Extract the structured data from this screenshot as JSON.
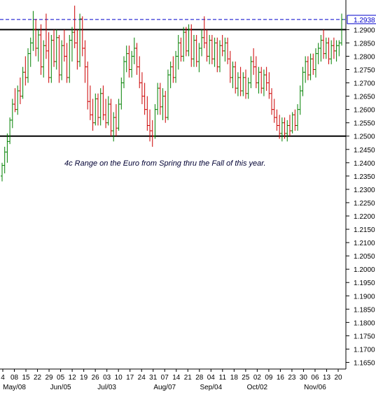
{
  "chart_data": {
    "type": "ohlc",
    "instrument": "EUR/USD",
    "y_axis": {
      "min": 1.1625,
      "max": 1.2985,
      "tick_start": 1.165,
      "tick_end": 1.29,
      "tick_step": 0.005,
      "decimals": 4,
      "position": "right"
    },
    "current_price": {
      "value": 1.2938,
      "label": "1.2938",
      "color": "#0000cc"
    },
    "horizontal_lines": [
      {
        "value": 1.29,
        "color": "#000000"
      },
      {
        "value": 1.25,
        "color": "#000000"
      }
    ],
    "annotation": "4c Range on the Euro from Spring thru the Fall of this year.",
    "x_day_labels": [
      "4",
      "08",
      "15",
      "22",
      "29",
      "05",
      "12",
      "19",
      "26",
      "03",
      "10",
      "17",
      "24",
      "31",
      "07",
      "14",
      "21",
      "28",
      "04",
      "11",
      "18",
      "25",
      "02",
      "09",
      "16",
      "23",
      "30",
      "06",
      "13",
      "20"
    ],
    "x_month_labels": [
      "May/08",
      "Jun/05",
      "Jul/03",
      "Aug/07",
      "Sep/04",
      "Oct/02",
      "Nov/06"
    ],
    "up_color": "#008000",
    "down_color": "#cc0000",
    "bars": [
      {
        "o": 1.235,
        "h": 1.24,
        "l": 1.233,
        "c": 1.239
      },
      {
        "o": 1.239,
        "h": 1.246,
        "l": 1.236,
        "c": 1.244
      },
      {
        "o": 1.244,
        "h": 1.251,
        "l": 1.24,
        "c": 1.248
      },
      {
        "o": 1.248,
        "h": 1.257,
        "l": 1.247,
        "c": 1.256
      },
      {
        "o": 1.256,
        "h": 1.264,
        "l": 1.253,
        "c": 1.262
      },
      {
        "o": 1.262,
        "h": 1.268,
        "l": 1.259,
        "c": 1.26
      },
      {
        "o": 1.26,
        "h": 1.269,
        "l": 1.258,
        "c": 1.267
      },
      {
        "o": 1.267,
        "h": 1.272,
        "l": 1.262,
        "c": 1.265
      },
      {
        "o": 1.265,
        "h": 1.276,
        "l": 1.264,
        "c": 1.274
      },
      {
        "o": 1.274,
        "h": 1.28,
        "l": 1.269,
        "c": 1.272
      },
      {
        "o": 1.272,
        "h": 1.283,
        "l": 1.27,
        "c": 1.281
      },
      {
        "o": 1.281,
        "h": 1.287,
        "l": 1.276,
        "c": 1.285
      },
      {
        "o": 1.285,
        "h": 1.297,
        "l": 1.282,
        "c": 1.29
      },
      {
        "o": 1.29,
        "h": 1.294,
        "l": 1.28,
        "c": 1.283
      },
      {
        "o": 1.283,
        "h": 1.29,
        "l": 1.278,
        "c": 1.288
      },
      {
        "o": 1.288,
        "h": 1.292,
        "l": 1.273,
        "c": 1.276
      },
      {
        "o": 1.276,
        "h": 1.286,
        "l": 1.272,
        "c": 1.284
      },
      {
        "o": 1.284,
        "h": 1.296,
        "l": 1.279,
        "c": 1.282
      },
      {
        "o": 1.282,
        "h": 1.289,
        "l": 1.27,
        "c": 1.272
      },
      {
        "o": 1.272,
        "h": 1.288,
        "l": 1.27,
        "c": 1.286
      },
      {
        "o": 1.286,
        "h": 1.29,
        "l": 1.276,
        "c": 1.278
      },
      {
        "o": 1.278,
        "h": 1.29,
        "l": 1.275,
        "c": 1.287
      },
      {
        "o": 1.287,
        "h": 1.288,
        "l": 1.27,
        "c": 1.273
      },
      {
        "o": 1.273,
        "h": 1.286,
        "l": 1.271,
        "c": 1.284
      },
      {
        "o": 1.284,
        "h": 1.29,
        "l": 1.278,
        "c": 1.28
      },
      {
        "o": 1.28,
        "h": 1.285,
        "l": 1.27,
        "c": 1.272
      },
      {
        "o": 1.272,
        "h": 1.288,
        "l": 1.27,
        "c": 1.286
      },
      {
        "o": 1.286,
        "h": 1.291,
        "l": 1.278,
        "c": 1.289
      },
      {
        "o": 1.289,
        "h": 1.299,
        "l": 1.283,
        "c": 1.285
      },
      {
        "o": 1.285,
        "h": 1.29,
        "l": 1.275,
        "c": 1.278
      },
      {
        "o": 1.278,
        "h": 1.296,
        "l": 1.276,
        "c": 1.294
      },
      {
        "o": 1.294,
        "h": 1.295,
        "l": 1.28,
        "c": 1.283
      },
      {
        "o": 1.283,
        "h": 1.286,
        "l": 1.27,
        "c": 1.276
      },
      {
        "o": 1.276,
        "h": 1.278,
        "l": 1.26,
        "c": 1.263
      },
      {
        "o": 1.263,
        "h": 1.269,
        "l": 1.256,
        "c": 1.258
      },
      {
        "o": 1.258,
        "h": 1.264,
        "l": 1.252,
        "c": 1.255
      },
      {
        "o": 1.255,
        "h": 1.266,
        "l": 1.254,
        "c": 1.264
      },
      {
        "o": 1.264,
        "h": 1.266,
        "l": 1.254,
        "c": 1.257
      },
      {
        "o": 1.257,
        "h": 1.268,
        "l": 1.254,
        "c": 1.266
      },
      {
        "o": 1.266,
        "h": 1.269,
        "l": 1.256,
        "c": 1.258
      },
      {
        "o": 1.258,
        "h": 1.264,
        "l": 1.253,
        "c": 1.255
      },
      {
        "o": 1.255,
        "h": 1.265,
        "l": 1.254,
        "c": 1.262
      },
      {
        "o": 1.262,
        "h": 1.264,
        "l": 1.25,
        "c": 1.252
      },
      {
        "o": 1.252,
        "h": 1.259,
        "l": 1.248,
        "c": 1.257
      },
      {
        "o": 1.257,
        "h": 1.262,
        "l": 1.25,
        "c": 1.253
      },
      {
        "o": 1.253,
        "h": 1.264,
        "l": 1.252,
        "c": 1.262
      },
      {
        "o": 1.262,
        "h": 1.272,
        "l": 1.26,
        "c": 1.27
      },
      {
        "o": 1.27,
        "h": 1.28,
        "l": 1.268,
        "c": 1.278
      },
      {
        "o": 1.278,
        "h": 1.284,
        "l": 1.274,
        "c": 1.281
      },
      {
        "o": 1.281,
        "h": 1.284,
        "l": 1.272,
        "c": 1.275
      },
      {
        "o": 1.275,
        "h": 1.282,
        "l": 1.272,
        "c": 1.28
      },
      {
        "o": 1.28,
        "h": 1.287,
        "l": 1.277,
        "c": 1.283
      },
      {
        "o": 1.283,
        "h": 1.285,
        "l": 1.273,
        "c": 1.276
      },
      {
        "o": 1.276,
        "h": 1.28,
        "l": 1.268,
        "c": 1.27
      },
      {
        "o": 1.27,
        "h": 1.274,
        "l": 1.262,
        "c": 1.265
      },
      {
        "o": 1.265,
        "h": 1.27,
        "l": 1.258,
        "c": 1.26
      },
      {
        "o": 1.26,
        "h": 1.265,
        "l": 1.252,
        "c": 1.254
      },
      {
        "o": 1.254,
        "h": 1.26,
        "l": 1.248,
        "c": 1.252
      },
      {
        "o": 1.252,
        "h": 1.256,
        "l": 1.246,
        "c": 1.25
      },
      {
        "o": 1.25,
        "h": 1.262,
        "l": 1.249,
        "c": 1.26
      },
      {
        "o": 1.26,
        "h": 1.27,
        "l": 1.258,
        "c": 1.268
      },
      {
        "o": 1.268,
        "h": 1.27,
        "l": 1.258,
        "c": 1.261
      },
      {
        "o": 1.261,
        "h": 1.268,
        "l": 1.256,
        "c": 1.265
      },
      {
        "o": 1.265,
        "h": 1.267,
        "l": 1.255,
        "c": 1.257
      },
      {
        "o": 1.257,
        "h": 1.275,
        "l": 1.256,
        "c": 1.273
      },
      {
        "o": 1.273,
        "h": 1.278,
        "l": 1.268,
        "c": 1.276
      },
      {
        "o": 1.276,
        "h": 1.28,
        "l": 1.27,
        "c": 1.272
      },
      {
        "o": 1.272,
        "h": 1.282,
        "l": 1.27,
        "c": 1.28
      },
      {
        "o": 1.28,
        "h": 1.288,
        "l": 1.275,
        "c": 1.285
      },
      {
        "o": 1.285,
        "h": 1.287,
        "l": 1.278,
        "c": 1.28
      },
      {
        "o": 1.28,
        "h": 1.291,
        "l": 1.278,
        "c": 1.289
      },
      {
        "o": 1.289,
        "h": 1.291,
        "l": 1.28,
        "c": 1.282
      },
      {
        "o": 1.282,
        "h": 1.292,
        "l": 1.28,
        "c": 1.29
      },
      {
        "o": 1.29,
        "h": 1.292,
        "l": 1.276,
        "c": 1.279
      },
      {
        "o": 1.279,
        "h": 1.288,
        "l": 1.276,
        "c": 1.286
      },
      {
        "o": 1.286,
        "h": 1.288,
        "l": 1.276,
        "c": 1.278
      },
      {
        "o": 1.278,
        "h": 1.285,
        "l": 1.274,
        "c": 1.283
      },
      {
        "o": 1.283,
        "h": 1.29,
        "l": 1.28,
        "c": 1.287
      },
      {
        "o": 1.287,
        "h": 1.295,
        "l": 1.283,
        "c": 1.285
      },
      {
        "o": 1.285,
        "h": 1.29,
        "l": 1.278,
        "c": 1.28
      },
      {
        "o": 1.28,
        "h": 1.288,
        "l": 1.277,
        "c": 1.286
      },
      {
        "o": 1.286,
        "h": 1.288,
        "l": 1.277,
        "c": 1.279
      },
      {
        "o": 1.279,
        "h": 1.287,
        "l": 1.276,
        "c": 1.285
      },
      {
        "o": 1.285,
        "h": 1.287,
        "l": 1.274,
        "c": 1.276
      },
      {
        "o": 1.276,
        "h": 1.286,
        "l": 1.274,
        "c": 1.284
      },
      {
        "o": 1.284,
        "h": 1.288,
        "l": 1.28,
        "c": 1.282
      },
      {
        "o": 1.282,
        "h": 1.287,
        "l": 1.278,
        "c": 1.285
      },
      {
        "o": 1.285,
        "h": 1.287,
        "l": 1.277,
        "c": 1.279
      },
      {
        "o": 1.279,
        "h": 1.282,
        "l": 1.27,
        "c": 1.272
      },
      {
        "o": 1.272,
        "h": 1.278,
        "l": 1.268,
        "c": 1.276
      },
      {
        "o": 1.276,
        "h": 1.278,
        "l": 1.266,
        "c": 1.268
      },
      {
        "o": 1.268,
        "h": 1.274,
        "l": 1.265,
        "c": 1.272
      },
      {
        "o": 1.272,
        "h": 1.276,
        "l": 1.265,
        "c": 1.267
      },
      {
        "o": 1.267,
        "h": 1.274,
        "l": 1.265,
        "c": 1.272
      },
      {
        "o": 1.272,
        "h": 1.275,
        "l": 1.264,
        "c": 1.266
      },
      {
        "o": 1.266,
        "h": 1.272,
        "l": 1.264,
        "c": 1.27
      },
      {
        "o": 1.27,
        "h": 1.28,
        "l": 1.268,
        "c": 1.278
      },
      {
        "o": 1.278,
        "h": 1.283,
        "l": 1.273,
        "c": 1.276
      },
      {
        "o": 1.276,
        "h": 1.28,
        "l": 1.268,
        "c": 1.27
      },
      {
        "o": 1.27,
        "h": 1.276,
        "l": 1.266,
        "c": 1.274
      },
      {
        "o": 1.274,
        "h": 1.276,
        "l": 1.266,
        "c": 1.268
      },
      {
        "o": 1.268,
        "h": 1.275,
        "l": 1.265,
        "c": 1.273
      },
      {
        "o": 1.273,
        "h": 1.276,
        "l": 1.267,
        "c": 1.27
      },
      {
        "o": 1.27,
        "h": 1.274,
        "l": 1.264,
        "c": 1.266
      },
      {
        "o": 1.266,
        "h": 1.268,
        "l": 1.258,
        "c": 1.26
      },
      {
        "o": 1.26,
        "h": 1.264,
        "l": 1.255,
        "c": 1.257
      },
      {
        "o": 1.257,
        "h": 1.26,
        "l": 1.252,
        "c": 1.254
      },
      {
        "o": 1.254,
        "h": 1.258,
        "l": 1.249,
        "c": 1.251
      },
      {
        "o": 1.251,
        "h": 1.257,
        "l": 1.248,
        "c": 1.255
      },
      {
        "o": 1.255,
        "h": 1.257,
        "l": 1.249,
        "c": 1.251
      },
      {
        "o": 1.251,
        "h": 1.256,
        "l": 1.248,
        "c": 1.254
      },
      {
        "o": 1.254,
        "h": 1.258,
        "l": 1.25,
        "c": 1.252
      },
      {
        "o": 1.252,
        "h": 1.259,
        "l": 1.251,
        "c": 1.258
      },
      {
        "o": 1.258,
        "h": 1.26,
        "l": 1.252,
        "c": 1.254
      },
      {
        "o": 1.254,
        "h": 1.262,
        "l": 1.252,
        "c": 1.26
      },
      {
        "o": 1.26,
        "h": 1.269,
        "l": 1.258,
        "c": 1.267
      },
      {
        "o": 1.267,
        "h": 1.276,
        "l": 1.265,
        "c": 1.274
      },
      {
        "o": 1.274,
        "h": 1.28,
        "l": 1.27,
        "c": 1.278
      },
      {
        "o": 1.278,
        "h": 1.28,
        "l": 1.271,
        "c": 1.273
      },
      {
        "o": 1.273,
        "h": 1.281,
        "l": 1.271,
        "c": 1.279
      },
      {
        "o": 1.279,
        "h": 1.281,
        "l": 1.273,
        "c": 1.275
      },
      {
        "o": 1.275,
        "h": 1.283,
        "l": 1.272,
        "c": 1.281
      },
      {
        "o": 1.281,
        "h": 1.285,
        "l": 1.277,
        "c": 1.283
      },
      {
        "o": 1.283,
        "h": 1.288,
        "l": 1.278,
        "c": 1.286
      },
      {
        "o": 1.286,
        "h": 1.29,
        "l": 1.279,
        "c": 1.281
      },
      {
        "o": 1.281,
        "h": 1.287,
        "l": 1.279,
        "c": 1.285
      },
      {
        "o": 1.285,
        "h": 1.287,
        "l": 1.277,
        "c": 1.279
      },
      {
        "o": 1.279,
        "h": 1.286,
        "l": 1.277,
        "c": 1.284
      },
      {
        "o": 1.284,
        "h": 1.287,
        "l": 1.279,
        "c": 1.282
      },
      {
        "o": 1.282,
        "h": 1.286,
        "l": 1.278,
        "c": 1.284
      },
      {
        "o": 1.284,
        "h": 1.286,
        "l": 1.28,
        "c": 1.285
      },
      {
        "o": 1.285,
        "h": 1.296,
        "l": 1.284,
        "c": 1.2938
      }
    ]
  }
}
